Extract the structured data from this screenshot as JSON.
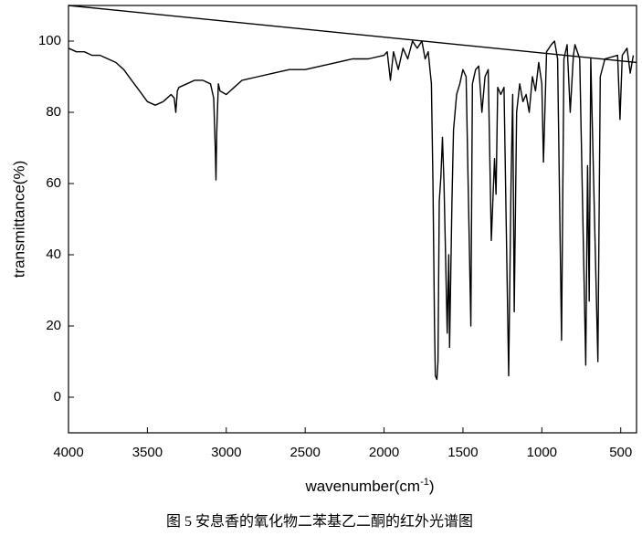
{
  "chart_data": {
    "type": "line",
    "xlabel": [
      "wavenumber(cm",
      "-1",
      ")"
    ],
    "ylabel": "transmittance(%)",
    "caption": "图 5 安息香的氧化物二苯基乙二酮的红外光谱图",
    "xlim": [
      4000,
      400
    ],
    "ylim": [
      -10,
      110
    ],
    "xticks": [
      4000,
      3500,
      3000,
      2500,
      2000,
      1500,
      1000,
      500
    ],
    "yticks": [
      0,
      20,
      40,
      60,
      80,
      100
    ],
    "series": [
      {
        "color": "#000000",
        "x": [
          4000,
          3950,
          3900,
          3850,
          3800,
          3750,
          3700,
          3650,
          3600,
          3550,
          3500,
          3450,
          3400,
          3350,
          3330,
          3320,
          3310,
          3300,
          3250,
          3200,
          3150,
          3100,
          3080,
          3070,
          3065,
          3060,
          3050,
          3040,
          3000,
          2950,
          2900,
          2800,
          2700,
          2600,
          2500,
          2400,
          2300,
          2200,
          2100,
          2000,
          1980,
          1960,
          1940,
          1910,
          1880,
          1850,
          1820,
          1790,
          1760,
          1740,
          1720,
          1700,
          1690,
          1680,
          1675,
          1665,
          1658,
          1650,
          1640,
          1630,
          1620,
          1600,
          1590,
          1585,
          1570,
          1560,
          1540,
          1520,
          1500,
          1480,
          1450,
          1440,
          1420,
          1400,
          1380,
          1360,
          1340,
          1320,
          1300,
          1290,
          1280,
          1260,
          1240,
          1210,
          1195,
          1185,
          1175,
          1160,
          1140,
          1120,
          1100,
          1080,
          1060,
          1040,
          1020,
          1000,
          990,
          970,
          940,
          920,
          900,
          875,
          860,
          840,
          820,
          800,
          790,
          760,
          722,
          710,
          700,
          690,
          645,
          630,
          600,
          520,
          505,
          490,
          460,
          440,
          420
        ],
        "values": [
          98,
          97,
          97,
          96,
          96,
          95,
          94,
          92,
          89,
          86,
          83,
          82,
          83,
          85,
          84,
          80,
          86,
          87,
          88,
          89,
          89,
          88,
          84,
          70,
          61,
          75,
          88,
          86,
          85,
          87,
          89,
          90,
          91,
          92,
          92,
          93,
          94,
          95,
          95,
          96,
          97,
          89,
          97,
          92,
          98,
          95,
          100,
          98,
          100,
          95,
          97,
          88,
          60,
          20,
          6,
          5,
          10,
          55,
          62,
          73,
          60,
          18,
          40,
          14,
          55,
          75,
          85,
          88,
          92,
          90,
          20,
          88,
          92,
          93,
          80,
          90,
          92,
          44,
          67,
          57,
          87,
          85,
          87,
          6,
          60,
          85,
          24,
          80,
          88,
          83,
          85,
          80,
          90,
          86,
          94,
          88,
          66,
          97,
          99,
          100,
          95,
          16,
          95,
          99,
          80,
          96,
          99,
          95,
          9,
          65,
          27,
          95,
          10,
          90,
          95,
          96,
          78,
          96,
          98,
          91,
          96
        ]
      },
      {
        "color": "#000000",
        "x": [
          4000,
          400
        ],
        "values": [
          110,
          94
        ]
      }
    ]
  }
}
